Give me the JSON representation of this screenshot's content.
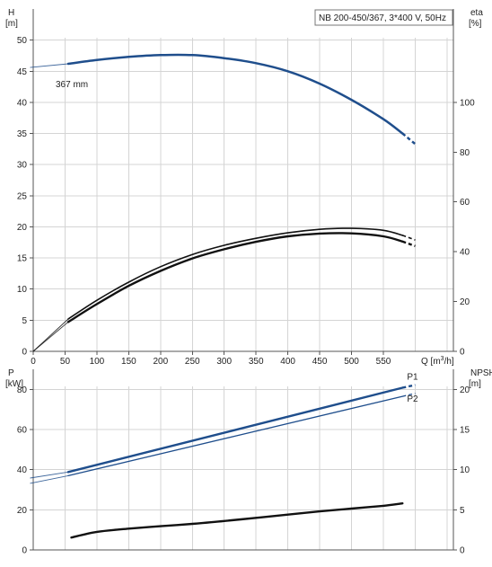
{
  "chart_data": [
    {
      "type": "line",
      "id": "head-efficiency",
      "title": "NB 200-450/367, 3*400 V, 50Hz",
      "xlabel": "Q [m³/h]",
      "ylabel_left": "H",
      "ylabel_left_unit": "[m]",
      "ylabel_right": "eta",
      "ylabel_right_unit": "[%]",
      "xlim": [
        0,
        660
      ],
      "ylim_left": [
        0,
        55
      ],
      "ylim_right": [
        0,
        137.5
      ],
      "x_ticks": [
        0,
        50,
        100,
        150,
        200,
        250,
        300,
        350,
        400,
        450,
        500,
        550
      ],
      "y_left_ticks": [
        0,
        5,
        10,
        15,
        20,
        25,
        30,
        35,
        40,
        45,
        50
      ],
      "y_right_ticks": [
        0,
        20,
        40,
        60,
        80,
        100
      ],
      "grid": true,
      "annotation": "367 mm",
      "series": [
        {
          "axis": "left",
          "color": "#1f4e8c",
          "width": 2.5,
          "x": [
            55,
            100,
            150,
            200,
            250,
            300,
            350,
            400,
            450,
            500,
            550,
            580
          ],
          "y": [
            46.2,
            46.8,
            47.3,
            47.6,
            47.6,
            47.1,
            46.3,
            45.0,
            43.0,
            40.4,
            37.3,
            35.0
          ],
          "ext_x": [
            -5,
            55
          ],
          "ext_y": [
            45.6,
            46.2
          ],
          "ext_style": "thin",
          "dash_x": [
            580,
            600
          ],
          "dash_y": [
            35.0,
            33.3
          ]
        },
        {
          "axis": "right",
          "color": "#111111",
          "width": 1.6,
          "x": [
            55,
            100,
            150,
            200,
            250,
            300,
            350,
            400,
            450,
            500,
            550,
            580
          ],
          "y": [
            13.0,
            20.5,
            27.8,
            34.0,
            38.9,
            42.6,
            45.4,
            47.6,
            49.0,
            49.4,
            48.6,
            46.6
          ],
          "ext_x": [
            0,
            55
          ],
          "ext_y": [
            0,
            13.0
          ],
          "ext_style": "thin",
          "dash_x": [
            580,
            600
          ],
          "dash_y": [
            46.6,
            44.7
          ]
        },
        {
          "axis": "right",
          "color": "#111111",
          "width": 2.4,
          "x": [
            55,
            100,
            150,
            200,
            250,
            300,
            350,
            400,
            450,
            500,
            550,
            580
          ],
          "y": [
            11.8,
            19.0,
            26.3,
            32.3,
            37.3,
            41.0,
            44.0,
            46.2,
            47.3,
            47.4,
            46.2,
            44.1
          ],
          "ext_x": [
            0,
            55
          ],
          "ext_y": [
            0,
            11.8
          ],
          "ext_style": "thin",
          "dash_x": [
            580,
            600
          ],
          "dash_y": [
            44.1,
            42.3
          ]
        }
      ]
    },
    {
      "type": "line",
      "id": "power-npsh",
      "xlabel": "",
      "ylabel_left": "P",
      "ylabel_left_unit": "[kW]",
      "ylabel_right": "NPSH",
      "ylabel_right_unit": "[m]",
      "xlim": [
        0,
        660
      ],
      "ylim_left": [
        0,
        90
      ],
      "ylim_right": [
        0,
        22.5
      ],
      "y_left_ticks": [
        0,
        20,
        40,
        60,
        80
      ],
      "y_right_ticks": [
        0,
        5,
        10,
        15,
        20
      ],
      "grid": true,
      "series": [
        {
          "name": "P1",
          "axis": "left",
          "color": "#1f4e8c",
          "width": 2.4,
          "x": [
            55,
            580
          ],
          "y": [
            38.8,
            80.8
          ],
          "ext_x": [
            -5,
            55
          ],
          "ext_y": [
            35.8,
            38.8
          ],
          "ext_style": "thin",
          "dash_x": [
            580,
            600
          ],
          "dash_y": [
            80.8,
            82.2
          ]
        },
        {
          "name": "P2",
          "axis": "left",
          "color": "#1f4e8c",
          "width": 1.3,
          "x": [
            55,
            580
          ],
          "y": [
            37.0,
            76.5
          ],
          "ext_x": [
            -5,
            55
          ],
          "ext_y": [
            33.2,
            37.0
          ],
          "ext_style": "thin",
          "dash_x": [
            580,
            600
          ],
          "dash_y": [
            76.5,
            78.0
          ]
        },
        {
          "axis": "right",
          "color": "#111111",
          "width": 2.4,
          "x": [
            60,
            100,
            150,
            200,
            250,
            300,
            350,
            400,
            450,
            500,
            550,
            580
          ],
          "y": [
            1.55,
            2.25,
            2.65,
            2.95,
            3.25,
            3.6,
            4.0,
            4.4,
            4.8,
            5.15,
            5.5,
            5.8
          ]
        }
      ]
    }
  ]
}
